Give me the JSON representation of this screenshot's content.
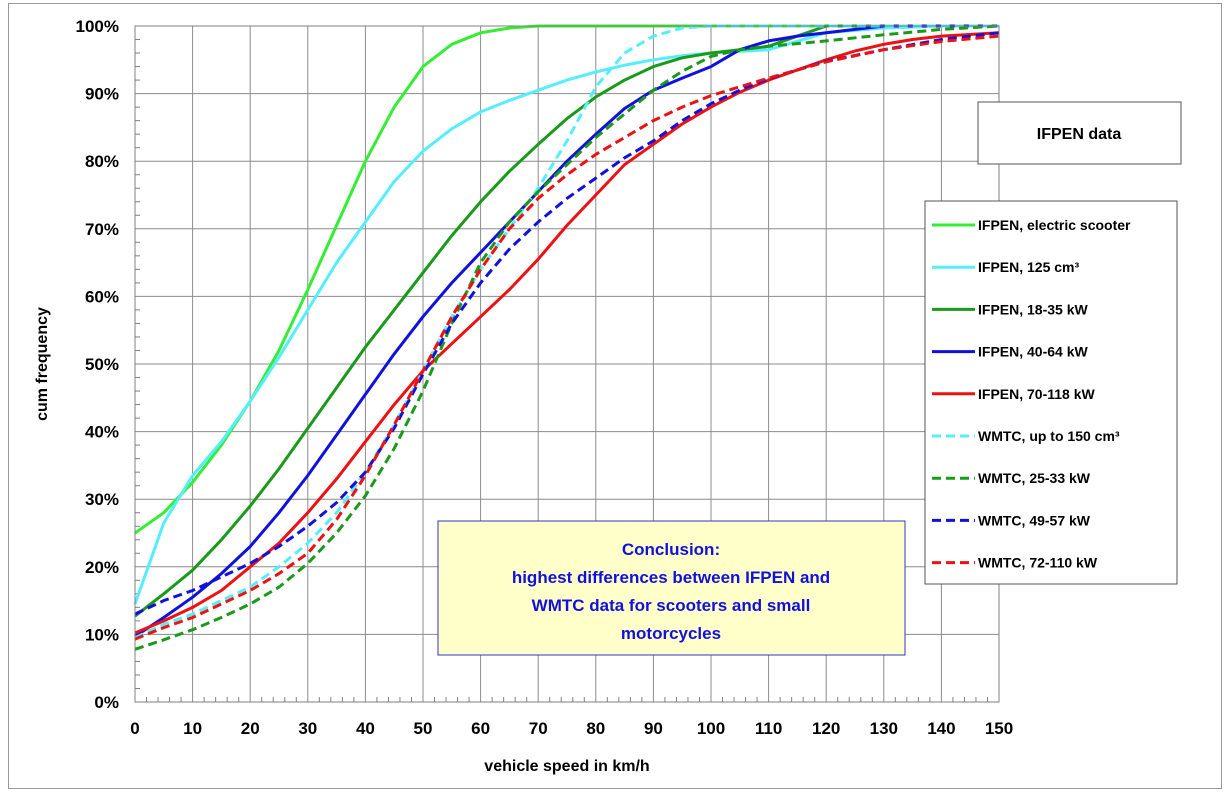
{
  "chart_data": {
    "type": "line",
    "xlabel": "vehicle speed in km/h",
    "ylabel": "cum frequency",
    "xlim": [
      0,
      150
    ],
    "ylim": [
      0,
      100
    ],
    "x_ticks": [
      0,
      10,
      20,
      30,
      40,
      50,
      60,
      70,
      80,
      90,
      100,
      110,
      120,
      130,
      140,
      150
    ],
    "y_ticks": [
      0,
      10,
      20,
      30,
      40,
      50,
      60,
      70,
      80,
      90,
      100
    ],
    "y_tick_format": "percent",
    "grid": true,
    "legend_position": "right",
    "info_box": "IFPEN data",
    "annotation": {
      "title": "Conclusion:",
      "lines": [
        "highest differences between IFPEN and",
        "WMTC data for scooters and small",
        "motorcycles"
      ]
    },
    "series": [
      {
        "name": "IFPEN, electric scooter",
        "color": "#33ee33",
        "dash": false,
        "x": [
          0,
          5,
          10,
          15,
          20,
          25,
          30,
          35,
          40,
          45,
          50,
          55,
          60,
          65,
          70,
          150
        ],
        "y": [
          25,
          28,
          32.5,
          38,
          44.5,
          52,
          61,
          70.5,
          80,
          88,
          94,
          97.3,
          99,
          99.7,
          100,
          100
        ]
      },
      {
        "name": "IFPEN, 125 cm³",
        "color": "#55eeff",
        "dash": false,
        "x": [
          0,
          5,
          10,
          15,
          20,
          25,
          30,
          35,
          40,
          45,
          50,
          55,
          60,
          65,
          70,
          75,
          80,
          85,
          90,
          95,
          100,
          110,
          120,
          130,
          140,
          150
        ],
        "y": [
          14.5,
          26.5,
          33.5,
          38.5,
          44.5,
          51,
          58,
          65,
          71,
          77,
          81.5,
          84.8,
          87.3,
          89,
          90.5,
          92,
          93.2,
          94.2,
          95,
          95.6,
          96,
          96.5,
          99,
          99.7,
          100,
          100
        ]
      },
      {
        "name": "IFPEN, 18-35 kW",
        "color": "#1a9a1a",
        "dash": false,
        "x": [
          0,
          5,
          10,
          15,
          20,
          25,
          30,
          35,
          40,
          45,
          50,
          55,
          60,
          65,
          70,
          75,
          80,
          85,
          90,
          95,
          100,
          105,
          110,
          115,
          120,
          130,
          140,
          150
        ],
        "y": [
          12.7,
          16,
          19.5,
          24,
          29,
          34.5,
          40.5,
          46.5,
          52.5,
          58,
          63.5,
          69,
          74,
          78.5,
          82.5,
          86.3,
          89.5,
          92,
          94,
          95.3,
          96,
          96.5,
          97,
          98.5,
          100,
          100,
          100,
          100
        ]
      },
      {
        "name": "IFPEN, 40-64 kW",
        "color": "#1111dd",
        "dash": false,
        "x": [
          0,
          5,
          10,
          15,
          20,
          25,
          30,
          35,
          40,
          45,
          50,
          55,
          60,
          65,
          70,
          75,
          80,
          85,
          90,
          95,
          100,
          105,
          110,
          115,
          120,
          125,
          130,
          140,
          150
        ],
        "y": [
          9.7,
          12.5,
          15.5,
          19,
          23,
          28,
          33.5,
          39.5,
          45.5,
          51.5,
          57,
          62,
          66.5,
          71,
          75.5,
          80,
          84,
          87.8,
          90.5,
          92.3,
          94,
          96.5,
          97.8,
          98.5,
          99,
          99.5,
          100,
          100,
          100
        ]
      },
      {
        "name": "IFPEN, 70-118 kW",
        "color": "#ee1111",
        "dash": false,
        "x": [
          0,
          5,
          10,
          15,
          20,
          25,
          30,
          35,
          40,
          45,
          50,
          55,
          60,
          65,
          70,
          75,
          80,
          85,
          90,
          95,
          100,
          105,
          110,
          115,
          120,
          125,
          130,
          135,
          140,
          150
        ],
        "y": [
          10.2,
          12,
          14,
          16.5,
          20,
          23.5,
          28,
          33,
          38.5,
          44,
          49,
          53,
          57,
          61,
          65.5,
          70.5,
          75,
          79.5,
          82.5,
          85.5,
          88,
          90.2,
          92,
          93.5,
          95,
          96.3,
          97.3,
          98,
          98.5,
          99
        ]
      },
      {
        "name": "WMTC, up to 150 cm³",
        "color": "#55eeff",
        "dash": true,
        "x": [
          0,
          5,
          10,
          15,
          20,
          25,
          30,
          35,
          40,
          45,
          50,
          55,
          60,
          65,
          70,
          75,
          80,
          85,
          90,
          95,
          100,
          150
        ],
        "y": [
          9.5,
          11.5,
          13,
          15,
          17,
          20,
          23.5,
          28,
          34,
          41,
          49,
          57,
          64,
          70,
          76,
          83,
          91,
          96,
          98.5,
          99.7,
          100,
          100
        ]
      },
      {
        "name": "WMTC, 25-33 kW",
        "color": "#1a9a1a",
        "dash": true,
        "x": [
          0,
          5,
          10,
          15,
          20,
          25,
          30,
          35,
          40,
          45,
          50,
          55,
          60,
          65,
          70,
          75,
          80,
          85,
          90,
          95,
          100,
          105,
          110,
          120,
          130,
          140,
          150
        ],
        "y": [
          7.8,
          9.2,
          10.7,
          12.5,
          14.5,
          17,
          20.5,
          25,
          30.5,
          37.5,
          46,
          56,
          65,
          71,
          75.5,
          79.5,
          83.5,
          87,
          90.5,
          93.3,
          95.5,
          96.5,
          97,
          97.8,
          98.7,
          99.5,
          100
        ]
      },
      {
        "name": "WMTC, 49-57 kW",
        "color": "#1111dd",
        "dash": true,
        "x": [
          0,
          5,
          10,
          15,
          20,
          25,
          30,
          35,
          40,
          45,
          50,
          55,
          60,
          65,
          70,
          75,
          80,
          85,
          90,
          95,
          100,
          105,
          110,
          120,
          130,
          140,
          150
        ],
        "y": [
          13,
          15,
          16.5,
          18.5,
          20.5,
          23,
          26,
          29.5,
          34,
          40.5,
          48.5,
          56,
          62,
          67,
          71,
          74.5,
          77.5,
          80.5,
          83,
          86,
          88.5,
          90.5,
          92.2,
          94.8,
          96.5,
          98,
          99
        ]
      },
      {
        "name": "WMTC, 72-110 kW",
        "color": "#ee1111",
        "dash": true,
        "x": [
          0,
          5,
          10,
          15,
          20,
          25,
          30,
          35,
          40,
          45,
          50,
          55,
          60,
          65,
          70,
          75,
          80,
          85,
          90,
          95,
          100,
          105,
          110,
          120,
          130,
          140,
          150
        ],
        "y": [
          9.3,
          11,
          12.5,
          14.5,
          16.5,
          19,
          22,
          27,
          33.5,
          41,
          49,
          57,
          64,
          70,
          74.5,
          78,
          81,
          83.5,
          86,
          88,
          89.7,
          91,
          92.3,
          94.7,
          96.5,
          97.7,
          98.5
        ]
      }
    ]
  }
}
